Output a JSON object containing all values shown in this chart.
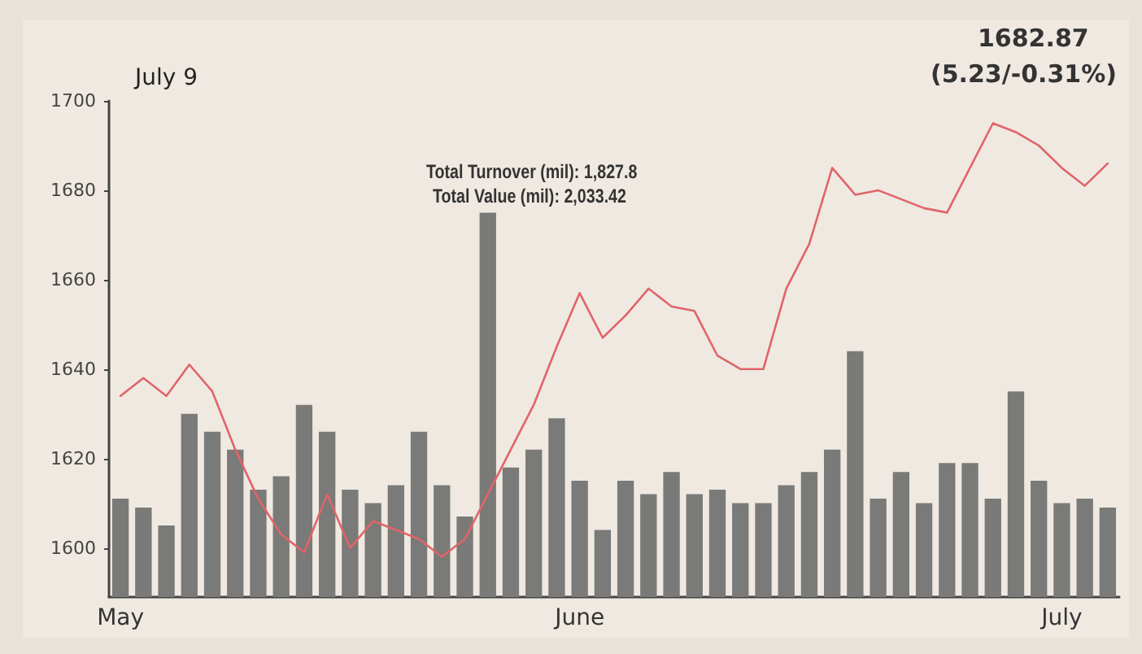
{
  "chart_data": {
    "type": "bar",
    "title": "July 9",
    "annotations": [
      "Total Turnover (mil): 1,827.8",
      "Total Value (mil): 2,033.42",
      "1682.87",
      "(5.23/-0.31%)"
    ],
    "categories": [
      "May",
      null,
      null,
      null,
      null,
      null,
      null,
      null,
      null,
      null,
      null,
      null,
      null,
      null,
      null,
      null,
      null,
      null,
      null,
      null,
      "June",
      null,
      null,
      null,
      null,
      null,
      null,
      null,
      null,
      null,
      null,
      null,
      null,
      null,
      null,
      null,
      null,
      null,
      null,
      null,
      null,
      "July",
      null,
      null
    ],
    "series": [
      {
        "color": "#7a7a78",
        "values": [
          1611,
          1609,
          1605,
          1630,
          1626,
          1622,
          1613,
          1616,
          1632,
          1626,
          1613,
          1610,
          1614,
          1626,
          1614,
          1607,
          1675,
          1618,
          1622,
          1629,
          1615,
          1604,
          1615,
          1612,
          1617,
          1612,
          1613,
          1610,
          1610,
          1614,
          1617,
          1622,
          1644,
          1611,
          1617,
          1610,
          1619,
          1619,
          1611,
          1635,
          1615,
          1610,
          1611,
          1609
        ]
      },
      {
        "type": "line",
        "color": "#e0646a",
        "values": [
          1634,
          1638,
          1634,
          1641,
          1635,
          1622,
          1611,
          1603,
          1599,
          1612,
          1600,
          1606,
          1604,
          1602,
          1598,
          1602,
          1612,
          1622,
          1632,
          1645,
          1657,
          1647,
          1652,
          1658,
          1654,
          1653,
          1643,
          1640,
          1640,
          1658,
          1668,
          1685,
          1679,
          1680,
          1678,
          1676,
          1675,
          1685,
          1695,
          1693,
          1690,
          1685,
          1681,
          1686
        ]
      }
    ],
    "ylim": [
      1589,
      1700
    ],
    "yticks": [
      1600,
      1620,
      1640,
      1660,
      1680,
      1700
    ],
    "grid": false,
    "marker": "none",
    "line_style": "solid"
  }
}
